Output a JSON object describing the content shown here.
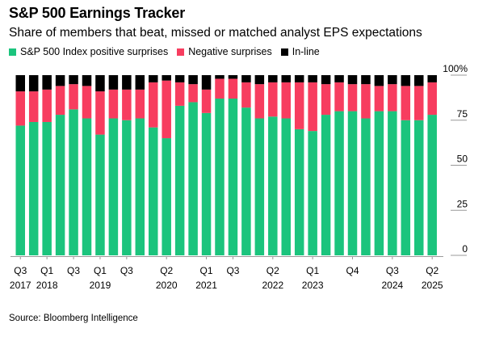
{
  "title": "S&P 500 Earnings Tracker",
  "subtitle": "Share of members that beat, missed or matched analyst EPS expectations",
  "source": "Source: Bloomberg Intelligence",
  "colors": {
    "positive": "#1bc47d",
    "negative": "#f73d5f",
    "inline": "#000000",
    "axis": "#999999",
    "text": "#000000"
  },
  "chart_data": {
    "type": "bar",
    "stacked": true,
    "title": "S&P 500 Earnings Tracker",
    "subtitle": "Share of members that beat, missed or matched analyst EPS expectations",
    "legend_position": "top-left",
    "y_axis_position": "right",
    "ylim": [
      0,
      100
    ],
    "y_ticks": [
      0,
      25,
      50,
      75,
      100
    ],
    "y_tick_labels": [
      "0",
      "25",
      "50",
      "75",
      "100%"
    ],
    "grid": false,
    "categories": [
      "Q3 2017",
      "Q4 2017",
      "Q1 2018",
      "Q2 2018",
      "Q3 2018",
      "Q4 2018",
      "Q1 2019",
      "Q2 2019",
      "Q3 2019",
      "Q4 2019",
      "Q1 2020",
      "Q2 2020",
      "Q3 2020",
      "Q4 2020",
      "Q1 2021",
      "Q2 2021",
      "Q3 2021",
      "Q4 2021",
      "Q1 2022",
      "Q2 2022",
      "Q3 2022",
      "Q4 2022",
      "Q1 2023",
      "Q2 2023",
      "Q3 2023",
      "Q4 2023",
      "Q1 2024",
      "Q2 2024",
      "Q3 2024",
      "Q4 2024",
      "Q1 2025",
      "Q2 2025"
    ],
    "x_tick_labels": [
      {
        "index": 0,
        "quarter": "Q3",
        "year": "2017"
      },
      {
        "index": 2,
        "quarter": "Q1",
        "year": "2018"
      },
      {
        "index": 4,
        "quarter": "Q3",
        "year": ""
      },
      {
        "index": 6,
        "quarter": "Q1",
        "year": "2019"
      },
      {
        "index": 8,
        "quarter": "Q3",
        "year": ""
      },
      {
        "index": 11,
        "quarter": "Q2",
        "year": "2020"
      },
      {
        "index": 14,
        "quarter": "Q1",
        "year": "2021"
      },
      {
        "index": 16,
        "quarter": "Q3",
        "year": ""
      },
      {
        "index": 19,
        "quarter": "Q2",
        "year": "2022"
      },
      {
        "index": 22,
        "quarter": "Q1",
        "year": "2023"
      },
      {
        "index": 25,
        "quarter": "Q4",
        "year": ""
      },
      {
        "index": 28,
        "quarter": "Q3",
        "year": "2024"
      },
      {
        "index": 31,
        "quarter": "Q2",
        "year": "2025"
      }
    ],
    "series": [
      {
        "name": "S&P 500 Index positive surprises",
        "values": [
          72,
          74,
          74,
          78,
          81,
          76,
          67,
          76,
          75,
          76,
          71,
          65,
          83,
          85,
          79,
          87,
          87,
          82,
          76,
          77,
          76,
          70,
          69,
          78,
          80,
          80,
          76,
          80,
          80,
          75,
          75,
          78
        ]
      },
      {
        "name": "Negative surprises",
        "values": [
          19,
          17,
          18,
          16,
          14,
          18,
          24,
          16,
          17,
          16,
          25,
          32,
          13,
          10,
          13,
          11,
          11,
          14,
          19,
          19,
          20,
          26,
          27,
          17,
          16,
          15,
          19,
          14,
          15,
          19,
          19,
          18
        ]
      },
      {
        "name": "In-line",
        "values": [
          9,
          9,
          8,
          6,
          5,
          6,
          9,
          8,
          8,
          8,
          4,
          3,
          4,
          5,
          8,
          2,
          2,
          4,
          5,
          4,
          4,
          4,
          4,
          5,
          4,
          5,
          5,
          6,
          5,
          6,
          6,
          4
        ]
      }
    ]
  }
}
